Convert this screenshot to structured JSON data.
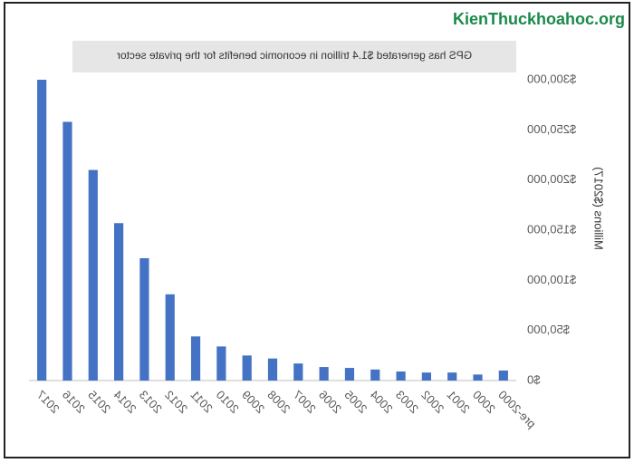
{
  "chart_data": {
    "type": "bar",
    "title": "GPS has generated $1.4 trillion in economic benefits for the private sector",
    "y_label": "Millions ($2017)",
    "watermark": "KienThuckhoahoc.org",
    "mirrored": true,
    "categories": [
      "pre-2000",
      "2000",
      "2001",
      "2002",
      "2003",
      "2004",
      "2005",
      "2006",
      "2007",
      "2008",
      "2009",
      "2010",
      "2011",
      "2012",
      "2013",
      "2014",
      "2015",
      "2016",
      "2017"
    ],
    "values": [
      10000,
      6000,
      8000,
      8000,
      9000,
      11000,
      12600,
      13500,
      17000,
      22000,
      25000,
      34000,
      44000,
      86000,
      122000,
      157000,
      210000,
      258000,
      300000
    ],
    "color": "#4472c4",
    "ylim": [
      0,
      300000
    ],
    "yticks": [
      {
        "value": 0,
        "label": "$0"
      },
      {
        "value": 50000,
        "label": "$50,000"
      },
      {
        "value": 100000,
        "label": "$100,000"
      },
      {
        "value": 150000,
        "label": "$150,000"
      },
      {
        "value": 200000,
        "label": "$200,000"
      },
      {
        "value": 250000,
        "label": "$250,000"
      },
      {
        "value": 300000,
        "label": "$300,000"
      }
    ]
  }
}
